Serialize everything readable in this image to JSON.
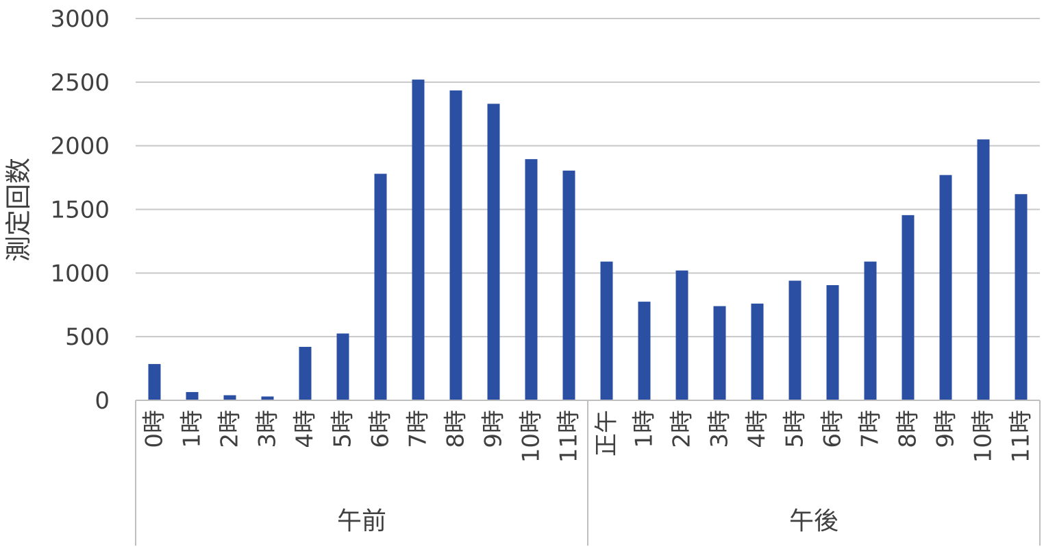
{
  "chart_data": {
    "type": "bar",
    "ylabel": "測定回数",
    "xlabel": "",
    "ylim": [
      0,
      3000
    ],
    "yticks": [
      0,
      500,
      1000,
      1500,
      2000,
      2500,
      3000
    ],
    "grid": true,
    "bar_color": "#2b4fa2",
    "grid_color": "#c8c8c8",
    "categories": [
      "0時",
      "1時",
      "2時",
      "3時",
      "4時",
      "5時",
      "6時",
      "7時",
      "8時",
      "9時",
      "10時",
      "11時",
      "正午",
      "1時",
      "2時",
      "3時",
      "4時",
      "5時",
      "6時",
      "7時",
      "8時",
      "9時",
      "10時",
      "11時"
    ],
    "groups": [
      {
        "label": "午前",
        "count": 12
      },
      {
        "label": "午後",
        "count": 12
      }
    ],
    "values": [
      285,
      65,
      40,
      30,
      420,
      525,
      1780,
      2520,
      2435,
      2330,
      1895,
      1805,
      1090,
      775,
      1020,
      740,
      760,
      940,
      905,
      1090,
      1455,
      1770,
      2050,
      1620
    ]
  }
}
